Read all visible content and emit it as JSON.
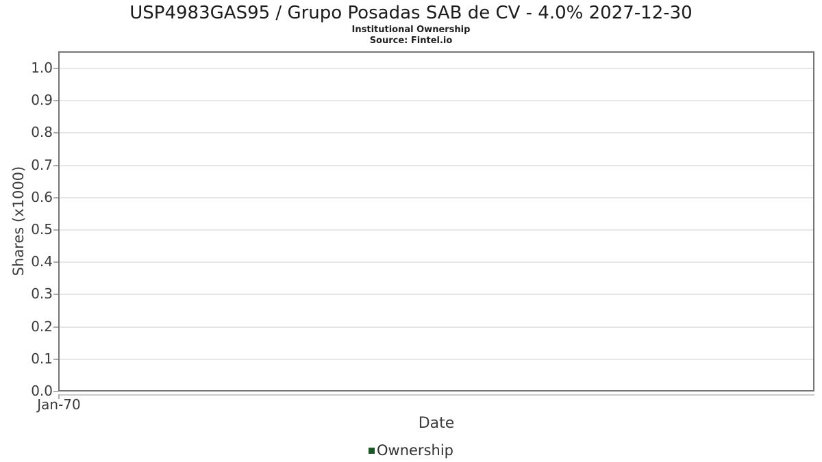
{
  "chart_data": {
    "type": "line",
    "title": "USP4983GAS95 / Grupo Posadas SAB de CV - 4.0% 2027-12-30",
    "subtitle": "Institutional Ownership",
    "source": "Source: Fintel.io",
    "xlabel": "Date",
    "ylabel": "Shares (x1000)",
    "x_tick_labels": [
      "Jan-70"
    ],
    "y_tick_labels": [
      "1.0",
      "0.9",
      "0.8",
      "0.7",
      "0.6",
      "0.5",
      "0.4",
      "0.3",
      "0.2",
      "0.1",
      "0.0"
    ],
    "ylim": [
      0.0,
      1.05
    ],
    "grid": true,
    "legend_position": "bottom-center",
    "series": [
      {
        "name": "Ownership",
        "color": "#1d5628",
        "x": [],
        "values": []
      }
    ],
    "colors": {
      "plot_border": "#757575",
      "gridline": "#e7e7e7",
      "axis_line": "#cccccc",
      "tick_mark": "#adadad",
      "text_dark": "#1c1c1c",
      "text_axis": "#3a3a3a"
    }
  }
}
